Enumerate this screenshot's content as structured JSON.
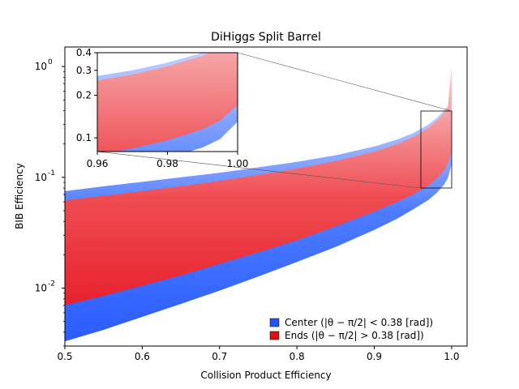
{
  "chart_data": {
    "type": "area",
    "title": "DiHiggs Split Barrel",
    "xlabel": "Collision Product Efficiency",
    "ylabel": "BIB Efficiency",
    "xlim": [
      0.5,
      1.02
    ],
    "ylim": [
      0.003,
      1.5
    ],
    "yscale": "log",
    "grid": false,
    "legend_placement": "lower-right",
    "x_ticks": [
      "0.5",
      "0.6",
      "0.7",
      "0.8",
      "0.9",
      "1.0"
    ],
    "y_ticks": [
      {
        "label": "10",
        "exp": "-2"
      },
      {
        "label": "10",
        "exp": "-1"
      },
      {
        "label": "10",
        "exp": "0"
      }
    ],
    "series": [
      {
        "name": "Center (|θ − π/2| < 0.38 [rad])",
        "color": "#2255ff",
        "x": [
          0.5,
          0.55,
          0.6,
          0.65,
          0.7,
          0.75,
          0.8,
          0.85,
          0.9,
          0.93,
          0.95,
          0.97,
          0.98,
          0.99,
          0.995,
          1.0
        ],
        "lower": [
          0.0033,
          0.0042,
          0.0055,
          0.0072,
          0.0095,
          0.0127,
          0.0172,
          0.0235,
          0.0335,
          0.0425,
          0.0512,
          0.0625,
          0.0715,
          0.0855,
          0.098,
          0.13
        ],
        "upper": [
          0.075,
          0.083,
          0.091,
          0.1,
          0.11,
          0.123,
          0.138,
          0.158,
          0.19,
          0.22,
          0.25,
          0.3,
          0.34,
          0.4,
          0.44,
          0.45
        ]
      },
      {
        "name": "Ends (|θ − π/2| > 0.38 [rad])",
        "color": "#dd1111",
        "x": [
          0.5,
          0.55,
          0.6,
          0.65,
          0.7,
          0.75,
          0.8,
          0.85,
          0.9,
          0.93,
          0.95,
          0.97,
          0.98,
          0.99,
          0.995,
          1.0
        ],
        "lower": [
          0.007,
          0.0085,
          0.0105,
          0.013,
          0.0165,
          0.021,
          0.027,
          0.036,
          0.049,
          0.06,
          0.07,
          0.084,
          0.096,
          0.115,
          0.132,
          0.17
        ],
        "upper": [
          0.062,
          0.068,
          0.075,
          0.083,
          0.093,
          0.105,
          0.12,
          0.14,
          0.17,
          0.2,
          0.23,
          0.28,
          0.32,
          0.38,
          0.43,
          1.0
        ]
      }
    ],
    "inset": {
      "xlim": [
        0.96,
        1.0
      ],
      "ylim": [
        0.08,
        0.4
      ],
      "x_ticks": [
        "0.96",
        "0.98",
        "1.00"
      ],
      "y_ticks": [
        "0.1",
        "0.2",
        "0.3",
        "0.4"
      ]
    }
  }
}
